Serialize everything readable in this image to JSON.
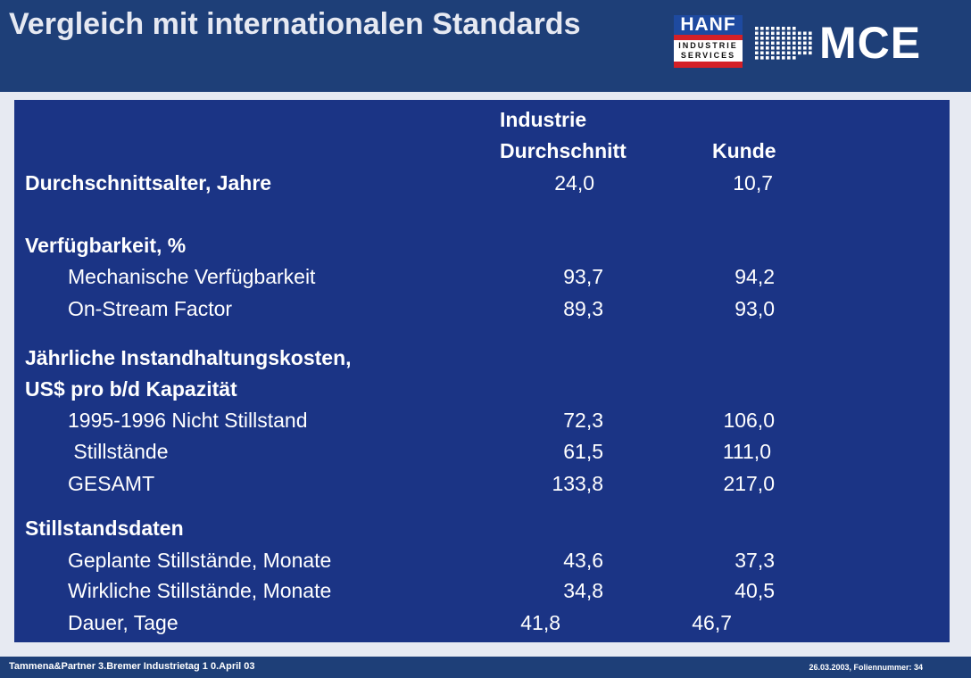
{
  "header": {
    "title": "Vergleich mit internationalen Standards",
    "logo_hanf": {
      "word": "HANF",
      "line1": "INDUSTRIE",
      "line2": "SERVICES"
    },
    "logo_mce": {
      "word": "MCE"
    }
  },
  "table": {
    "col_headers": {
      "industry_line1": "Industrie",
      "industry_line2": "Durchschnitt",
      "customer": "Kunde"
    },
    "age": {
      "label": "Durchschnittsalter, Jahre",
      "industry": "24,0",
      "customer": "10,7"
    },
    "availability": {
      "heading": "Verfügbarkeit, %",
      "rows": [
        {
          "label": "Mechanische Verfügbarkeit",
          "industry": "93,7",
          "customer": "94,2"
        },
        {
          "label": "On-Stream Factor",
          "industry": "89,3",
          "customer": "93,0"
        }
      ]
    },
    "costs": {
      "heading_line1": "Jährliche Instandhaltungskosten,",
      "heading_line2": "US$ pro b/d Kapazität",
      "rows": [
        {
          "label": "1995-1996 Nicht Stillstand",
          "industry": "72,3",
          "customer": "106,0"
        },
        {
          "label": " Stillstände",
          "industry": "61,5",
          "customer": "111,0"
        },
        {
          "label": "GESAMT",
          "industry": "133,8",
          "customer": "217,0"
        }
      ]
    },
    "shutdown": {
      "heading": "Stillstandsdaten",
      "rows": [
        {
          "label": "Geplante Stillstände, Monate",
          "industry": "43,6",
          "customer": "37,3"
        },
        {
          "label": "Wirkliche Stillstände, Monate",
          "industry": "34,8",
          "customer": "40,5"
        },
        {
          "label": "Dauer, Tage",
          "industry": "41,8",
          "customer": "46,7"
        }
      ]
    }
  },
  "footer": {
    "left": "Tammena&Partner  3.Bremer Industrietag  1 0.April 03",
    "right": "26.03.2003, Foliennummer: 34"
  },
  "colors": {
    "header_bg": "#1e3f78",
    "panel_bg": "#1b3485",
    "logo_red": "#d42027",
    "logo_blue": "#1e4aa0"
  }
}
